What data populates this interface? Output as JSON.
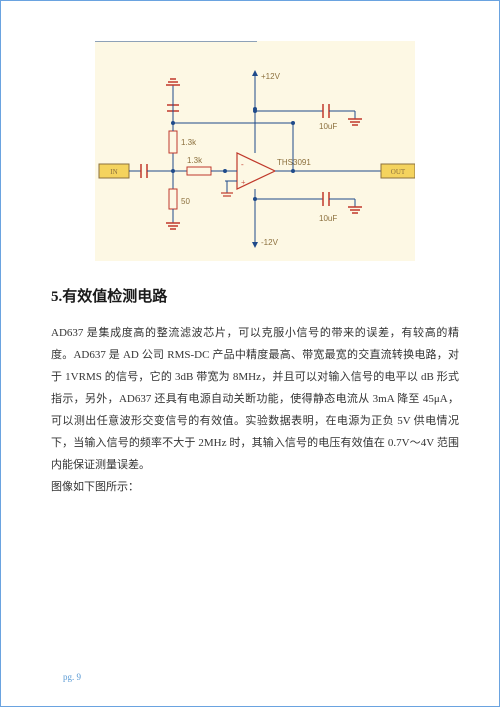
{
  "heading": "5.有效值检测电路",
  "paragraph1": "AD637 是集成度高的整流滤波芯片，可以克服小信号的带来的误差，有较高的精度。AD637 是 AD 公司 RMS-DC 产品中精度最高、带宽最宽的交直流转换电路，对于 1VRMS 的信号，它的 3dB 带宽为 8MHz，并且可以对输入信号的电平以 dB 形式指示，另外，AD637 还具有电源自动关断功能，使得静态电流从 3mA 降至 45μA，可以测出任意波形交变信号的有效值。实验数据表明，在电源为正负 5V 供电情况下，当输入信号的频率不大于 2MHz 时，其输入信号的电压有效值在 0.7V～4V 范围内能保证测量误差。",
  "paragraph2": "图像如下图所示：",
  "footer_text": "pg. 9",
  "diagram": {
    "bg_color": "#fdf8e4",
    "wire_color": "#1e4a8a",
    "accent_red": "#c0392b",
    "term_fill": "#f4d35e",
    "text_color": "#8c703e",
    "text_size": 8,
    "in_label": "IN",
    "out_label": "OUT",
    "opamp_label": "THS3091",
    "r1_label": "1.3k",
    "r2_label": "1.3k",
    "r3_label": "50",
    "c1_label": "10uF",
    "c2_label": "10uF",
    "vpos_label": "+12V",
    "vneg_label": "-12V"
  }
}
